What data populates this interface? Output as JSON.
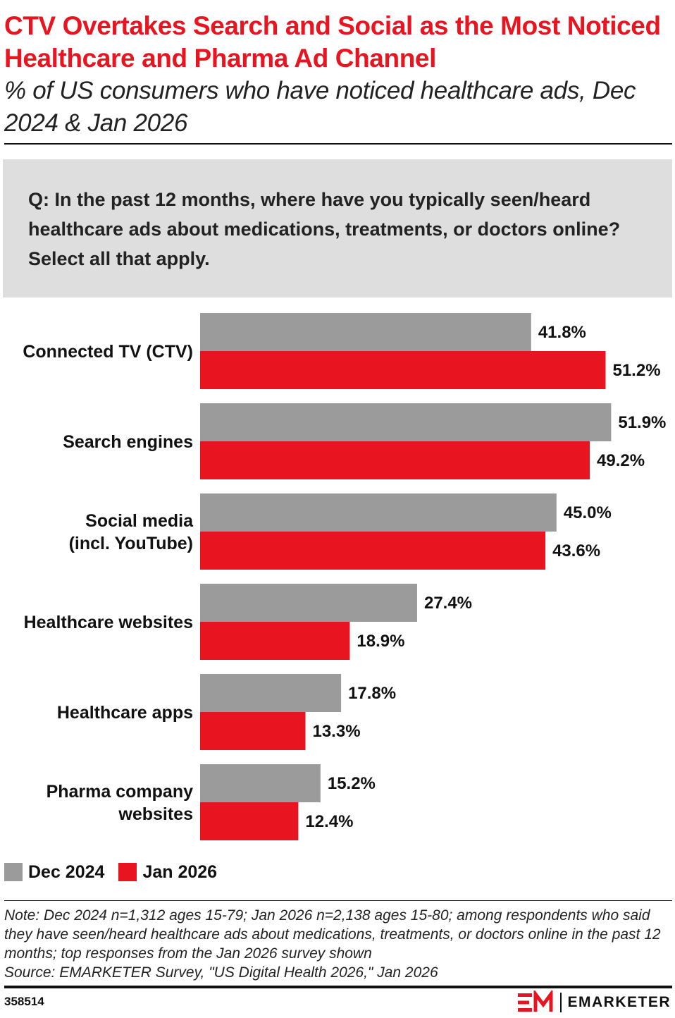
{
  "header": {
    "title": "CTV Overtakes Search and Social as the Most Noticed Healthcare and Pharma Ad Channel",
    "subtitle": "% of US consumers who have noticed healthcare ads, Dec 2024 & Jan 2026"
  },
  "question": "Q: In the past 12 months, where have you typically seen/heard healthcare ads about medications, treatments, or doctors online? Select all that apply.",
  "chart_data": {
    "type": "bar",
    "orientation": "horizontal",
    "categories": [
      [
        "Connected TV (CTV)"
      ],
      [
        "Search engines"
      ],
      [
        "Social media",
        "(incl. YouTube)"
      ],
      [
        "Healthcare websites"
      ],
      [
        "Healthcare apps"
      ],
      [
        "Pharma company",
        "websites"
      ]
    ],
    "series": [
      {
        "name": "Dec 2024",
        "color": "#9b9b9b",
        "values": [
          41.8,
          51.9,
          45.0,
          27.4,
          17.8,
          15.2
        ],
        "labels": [
          "41.8%",
          "51.9%",
          "45.0%",
          "27.4%",
          "17.8%",
          "15.2%"
        ]
      },
      {
        "name": "Jan 2026",
        "color": "#e8141f",
        "values": [
          51.2,
          49.2,
          43.6,
          18.9,
          13.3,
          12.4
        ],
        "labels": [
          "51.2%",
          "49.2%",
          "43.6%",
          "18.9%",
          "13.3%",
          "12.4%"
        ]
      }
    ],
    "xlim": [
      0,
      52
    ],
    "grid": false,
    "legend_position": "bottom-left"
  },
  "note": "Note: Dec 2024 n=1,312 ages 15-79; Jan 2026 n=2,138 ages 15-80; among respondents who said they have seen/heard healthcare ads about medications, treatments, or doctors online in the past 12 months; top responses from the Jan 2026 survey shown",
  "source": "Source: EMARKETER Survey, \"US Digital Health 2026,\" Jan 2026",
  "footer": {
    "chart_id": "358514",
    "brand": "EMARKETER"
  }
}
